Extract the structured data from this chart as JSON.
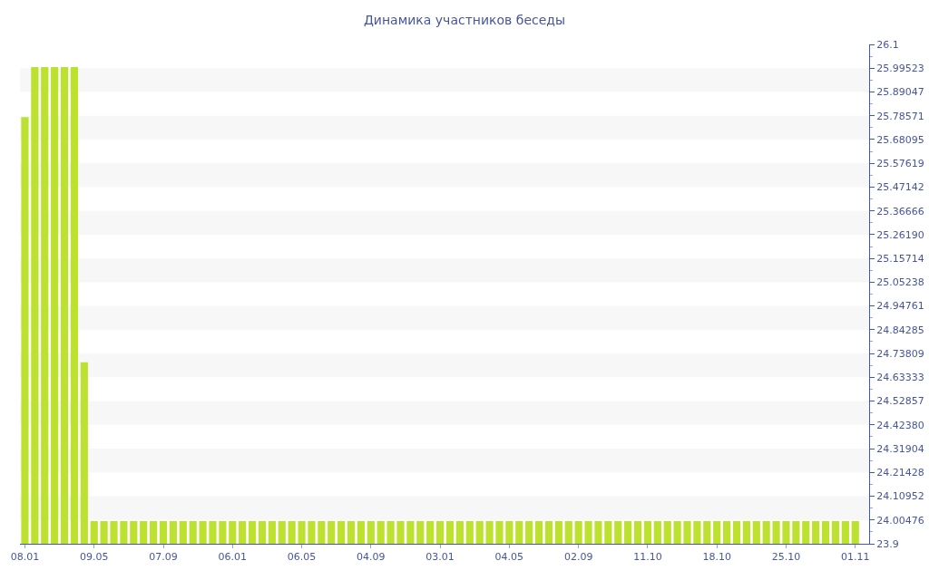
{
  "chart_data": {
    "type": "bar",
    "title": "Динамика участников беседы",
    "categories": [
      "08.01",
      null,
      null,
      null,
      null,
      null,
      null,
      "09.05",
      null,
      null,
      null,
      null,
      null,
      null,
      "07.09",
      null,
      null,
      null,
      null,
      null,
      null,
      "06.01",
      null,
      null,
      null,
      null,
      null,
      null,
      "06.05",
      null,
      null,
      null,
      null,
      null,
      null,
      "04.09",
      null,
      null,
      null,
      null,
      null,
      null,
      "03.01",
      null,
      null,
      null,
      null,
      null,
      null,
      "04.05",
      null,
      null,
      null,
      null,
      null,
      null,
      "02.09",
      null,
      null,
      null,
      null,
      null,
      null,
      "11.10",
      null,
      null,
      null,
      null,
      null,
      null,
      "18.10",
      null,
      null,
      null,
      null,
      null,
      null,
      "25.10",
      null,
      null,
      null,
      null,
      null,
      null,
      "01.11"
    ],
    "values": [
      25.78,
      26,
      26,
      26,
      26,
      26,
      24.7,
      24,
      24,
      24,
      24,
      24,
      24,
      24,
      24,
      24,
      24,
      24,
      24,
      24,
      24,
      24,
      24,
      24,
      24,
      24,
      24,
      24,
      24,
      24,
      24,
      24,
      24,
      24,
      24,
      24,
      24,
      24,
      24,
      24,
      24,
      24,
      24,
      24,
      24,
      24,
      24,
      24,
      24,
      24,
      24,
      24,
      24,
      24,
      24,
      24,
      24,
      24,
      24,
      24,
      24,
      24,
      24,
      24,
      24,
      24,
      24,
      24,
      24,
      24,
      24,
      24,
      24,
      24,
      24,
      24,
      24,
      24,
      24,
      24,
      24,
      24,
      24,
      24,
      24
    ],
    "color": "#bde12f",
    "ylim": [
      23.9,
      26.1
    ],
    "yticks": [
      23.9,
      24.00476,
      24.10952,
      24.21428,
      24.31904,
      {
        "value": 24.4238,
        "label": "24.42380"
      },
      24.52857,
      24.63333,
      24.73809,
      24.84285,
      24.94761,
      25.05238,
      25.15714,
      {
        "value": 25.2619,
        "label": "25.26190"
      },
      25.36666,
      25.47142,
      25.57619,
      25.68095,
      25.78571,
      25.89047,
      25.99523,
      26.1
    ],
    "bands": [
      {
        "axis": "y",
        "from": 24.00476,
        "to": 24.10952,
        "color": "#f7f7f7"
      },
      {
        "axis": "y",
        "from": 24.21428,
        "to": 24.31904,
        "color": "#f7f7f7"
      },
      {
        "axis": "y",
        "from": 24.4238,
        "to": 24.52857,
        "color": "#f7f7f7"
      },
      {
        "axis": "y",
        "from": 24.63333,
        "to": 24.73809,
        "color": "#f7f7f7"
      },
      {
        "axis": "y",
        "from": 24.84285,
        "to": 24.94761,
        "color": "#f7f7f7"
      },
      {
        "axis": "y",
        "from": 25.05238,
        "to": 25.15714,
        "color": "#f7f7f7"
      },
      {
        "axis": "y",
        "from": 25.2619,
        "to": 25.36666,
        "color": "#f7f7f7"
      },
      {
        "axis": "y",
        "from": 25.47142,
        "to": 25.57619,
        "color": "#f7f7f7"
      },
      {
        "axis": "y",
        "from": 25.68095,
        "to": 25.78571,
        "color": "#f7f7f7"
      },
      {
        "axis": "y",
        "from": 25.89047,
        "to": 25.99523,
        "color": "#f7f7f7"
      }
    ]
  }
}
